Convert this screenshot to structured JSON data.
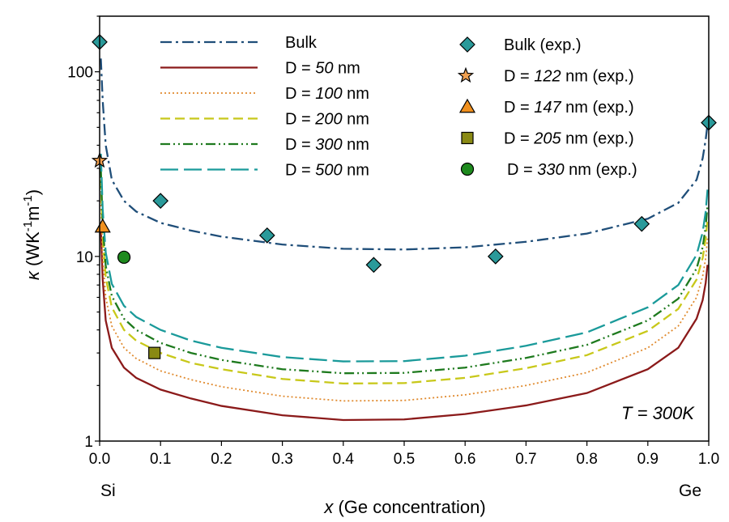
{
  "chart_data": {
    "type": "line",
    "xlabel_var": "x",
    "xlabel_rest": " (Ge concentration)",
    "ylabel_kappa": "κ",
    "ylabel_units": {
      "p1": " (WK",
      "e1": "-1",
      "p2": "m",
      "e2": "-1",
      "p3": ")"
    },
    "x_tick_labels": [
      "0.0",
      "0.1",
      "0.2",
      "0.3",
      "0.4",
      "0.5",
      "0.6",
      "0.7",
      "0.8",
      "0.9",
      "1.0"
    ],
    "x_ticks": [
      0.0,
      0.1,
      0.2,
      0.3,
      0.4,
      0.5,
      0.6,
      0.7,
      0.8,
      0.9,
      1.0
    ],
    "y_scale": "log",
    "y_tick_labels": [
      "1",
      "10",
      "100"
    ],
    "y_ticks": [
      1,
      10,
      100
    ],
    "xlim": [
      0,
      1
    ],
    "ylim": [
      1,
      200
    ],
    "end_labels": {
      "left": "Si",
      "right": "Ge"
    },
    "annotation": {
      "var": "T",
      "rest": " = 300K"
    },
    "series": [
      {
        "name": "Bulk",
        "label_pre": "Bulk",
        "label_it": "",
        "label_post": "",
        "color": "#1f4e79",
        "dash": "14,5,3,5",
        "x": [
          0.002,
          0.005,
          0.01,
          0.02,
          0.04,
          0.06,
          0.1,
          0.15,
          0.2,
          0.3,
          0.4,
          0.5,
          0.6,
          0.7,
          0.8,
          0.9,
          0.95,
          0.98,
          0.99,
          0.995,
          0.998
        ],
        "y": [
          118,
          70,
          40,
          26,
          20,
          17.5,
          15.2,
          13.8,
          12.8,
          11.6,
          11.0,
          10.9,
          11.2,
          12.0,
          13.3,
          16.0,
          19.5,
          26,
          34,
          43,
          52
        ]
      },
      {
        "name": "D = 50 nm",
        "label_pre": "D = ",
        "label_it": "50",
        "label_post": " nm",
        "color": "#8b1a1a",
        "dash": "",
        "x": [
          0.002,
          0.005,
          0.01,
          0.02,
          0.04,
          0.06,
          0.1,
          0.15,
          0.2,
          0.3,
          0.4,
          0.5,
          0.6,
          0.7,
          0.8,
          0.9,
          0.95,
          0.98,
          0.99,
          0.995,
          0.998
        ],
        "y": [
          14,
          7.5,
          4.5,
          3.2,
          2.5,
          2.2,
          1.9,
          1.7,
          1.55,
          1.38,
          1.3,
          1.31,
          1.4,
          1.56,
          1.82,
          2.45,
          3.2,
          4.6,
          5.8,
          7.2,
          9.0
        ]
      },
      {
        "name": "D = 100 nm",
        "label_pre": "D = ",
        "label_it": "100",
        "label_post": " nm",
        "color": "#e08a2e",
        "dash": "2,3",
        "x": [
          0.002,
          0.005,
          0.01,
          0.02,
          0.04,
          0.06,
          0.1,
          0.15,
          0.2,
          0.3,
          0.4,
          0.5,
          0.6,
          0.7,
          0.8,
          0.9,
          0.95,
          0.98,
          0.99,
          0.995,
          0.998
        ],
        "y": [
          20,
          10,
          6.0,
          4.2,
          3.2,
          2.8,
          2.4,
          2.15,
          1.97,
          1.75,
          1.65,
          1.66,
          1.78,
          2.0,
          2.35,
          3.2,
          4.2,
          6.0,
          7.8,
          9.8,
          12.5
        ]
      },
      {
        "name": "D = 200 nm",
        "label_pre": "D = ",
        "label_it": "200",
        "label_post": " nm",
        "color": "#c8c81a",
        "dash": "12,6",
        "x": [
          0.002,
          0.005,
          0.01,
          0.02,
          0.04,
          0.06,
          0.1,
          0.15,
          0.2,
          0.3,
          0.4,
          0.5,
          0.6,
          0.7,
          0.8,
          0.9,
          0.95,
          0.98,
          0.99,
          0.995,
          0.998
        ],
        "y": [
          26,
          13,
          7.7,
          5.3,
          4.0,
          3.5,
          3.0,
          2.65,
          2.45,
          2.17,
          2.05,
          2.06,
          2.2,
          2.48,
          2.92,
          3.95,
          5.2,
          7.5,
          9.8,
          12.5,
          16
        ]
      },
      {
        "name": "D = 300 nm",
        "label_pre": "D = ",
        "label_it": "300",
        "label_post": " nm",
        "color": "#1e7a1e",
        "dash": "12,4,2,4,2,4",
        "x": [
          0.002,
          0.005,
          0.01,
          0.02,
          0.04,
          0.06,
          0.1,
          0.15,
          0.2,
          0.3,
          0.4,
          0.5,
          0.6,
          0.7,
          0.8,
          0.9,
          0.95,
          0.98,
          0.99,
          0.995,
          0.998
        ],
        "y": [
          30,
          15,
          8.9,
          6.1,
          4.6,
          4.0,
          3.4,
          3.0,
          2.75,
          2.45,
          2.33,
          2.34,
          2.5,
          2.82,
          3.32,
          4.5,
          5.9,
          8.6,
          11.2,
          14.5,
          19
        ]
      },
      {
        "name": "D = 500 nm",
        "label_pre": "D = ",
        "label_it": "500",
        "label_post": " nm",
        "color": "#1a9a9a",
        "dash": "22,7",
        "x": [
          0.002,
          0.005,
          0.01,
          0.02,
          0.04,
          0.06,
          0.1,
          0.15,
          0.2,
          0.3,
          0.4,
          0.5,
          0.6,
          0.7,
          0.8,
          0.9,
          0.95,
          0.98,
          0.99,
          0.995,
          0.998
        ],
        "y": [
          36,
          18,
          10.5,
          7.1,
          5.4,
          4.7,
          4.0,
          3.5,
          3.2,
          2.85,
          2.7,
          2.71,
          2.9,
          3.28,
          3.88,
          5.3,
          7.0,
          10.2,
          13.5,
          17.5,
          23
        ]
      }
    ],
    "scatter": [
      {
        "name": "Bulk (exp.)",
        "label_pre": "Bulk (exp.)",
        "label_it": "",
        "label_post": "",
        "marker": "diamond",
        "color": "#2a9a9a",
        "x": [
          0.0,
          0.1,
          0.275,
          0.45,
          0.65,
          0.89,
          1.0
        ],
        "y": [
          145,
          20,
          13,
          9,
          10,
          15,
          53
        ]
      },
      {
        "name": "D = 122 nm (exp.)",
        "label_pre": "D = ",
        "label_it": "122",
        "label_post": " nm (exp.)",
        "marker": "star",
        "color": "#f0a050",
        "x": [
          0.0
        ],
        "y": [
          33
        ]
      },
      {
        "name": "D = 147 nm (exp.)",
        "label_pre": "D = ",
        "label_it": "147",
        "label_post": " nm (exp.)",
        "marker": "triangle",
        "color": "#f0901e",
        "x": [
          0.005
        ],
        "y": [
          14.5
        ]
      },
      {
        "name": "D = 205 nm (exp.)",
        "label_pre": "D = ",
        "label_it": "205",
        "label_post": " nm (exp.)",
        "marker": "square",
        "color": "#8a8a14",
        "x": [
          0.09
        ],
        "y": [
          3.0
        ]
      },
      {
        "name": "D = 330 nm (exp.)",
        "label_pre": "D = ",
        "label_it": "330",
        "label_post": " nm (exp.)",
        "marker": "circle",
        "color": "#1e8a1e",
        "x": [
          0.04
        ],
        "y": [
          9.9
        ]
      }
    ]
  }
}
